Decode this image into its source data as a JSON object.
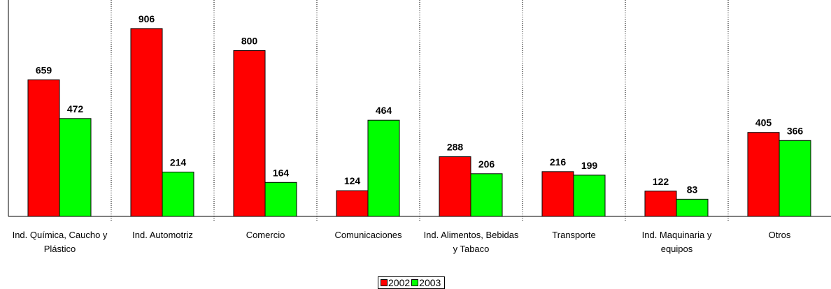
{
  "chart_data": {
    "type": "bar",
    "categories": [
      "Ind. Química, Caucho y Plástico",
      "Ind. Automotriz",
      "Comercio",
      "Comunicaciones",
      "Ind. Alimentos, Bebidas y Tabaco",
      "Transporte",
      "Ind. Maquinaria y equipos",
      "Otros"
    ],
    "series": [
      {
        "name": "2002",
        "color": "#ff0000",
        "values": [
          659,
          906,
          800,
          124,
          288,
          216,
          122,
          405
        ]
      },
      {
        "name": "2003",
        "color": "#00ff00",
        "values": [
          472,
          214,
          164,
          464,
          206,
          199,
          83,
          366
        ]
      }
    ],
    "ylim": [
      0,
      1000
    ],
    "legend": "bottom"
  }
}
